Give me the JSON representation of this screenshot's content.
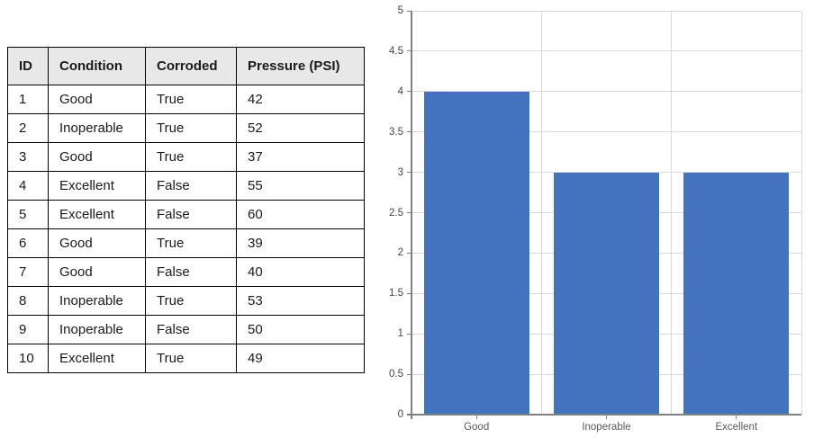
{
  "table": {
    "headers": [
      "ID",
      "Condition",
      "Corroded",
      "Pressure (PSI)"
    ],
    "rows": [
      [
        "1",
        "Good",
        "True",
        "42"
      ],
      [
        "2",
        "Inoperable",
        "True",
        "52"
      ],
      [
        "3",
        "Good",
        "True",
        "37"
      ],
      [
        "4",
        "Excellent",
        "False",
        "55"
      ],
      [
        "5",
        "Excellent",
        "False",
        "60"
      ],
      [
        "6",
        "Good",
        "True",
        "39"
      ],
      [
        "7",
        "Good",
        "False",
        "40"
      ],
      [
        "8",
        "Inoperable",
        "True",
        "53"
      ],
      [
        "9",
        "Inoperable",
        "False",
        "50"
      ],
      [
        "10",
        "Excellent",
        "True",
        "49"
      ]
    ]
  },
  "chart_data": {
    "type": "bar",
    "categories": [
      "Good",
      "Inoperable",
      "Excellent"
    ],
    "values": [
      4,
      3,
      3
    ],
    "title": "",
    "xlabel": "",
    "ylabel": "",
    "ylim": [
      0,
      5
    ],
    "ytick_step": 0.5,
    "ytick_labels": [
      "0",
      "0.5",
      "1",
      "1.5",
      "2",
      "2.5",
      "3",
      "3.5",
      "4",
      "4.5",
      "5"
    ],
    "grid": true,
    "legend": false
  },
  "colors": {
    "bar": "#4472BE",
    "gridline": "#D9D9D9",
    "axis": "#808080",
    "ytick_label": "#444444",
    "xtick_label": "#595959",
    "table_header_bg": "#E8E8E8",
    "table_border": "#000000"
  }
}
